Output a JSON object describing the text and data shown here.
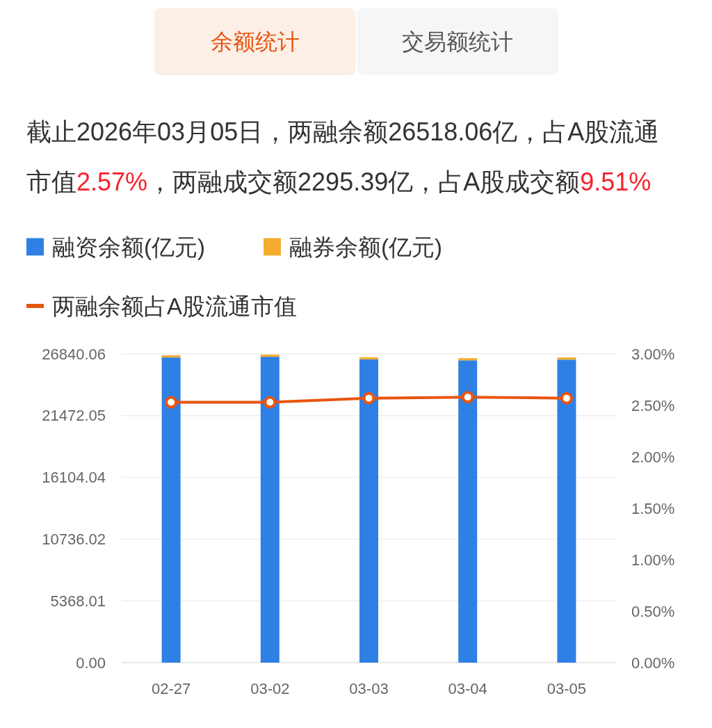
{
  "chart_data": {
    "type": "bar",
    "stacked": true,
    "annotations": [
      "余额统计",
      "交易额统计"
    ],
    "subtitle": "截止2026年03月05日，两融余额26518.06亿，占A股流通市值2.57%，两融成交额2295.39亿，占A股成交额9.51%",
    "categories": [
      "02-27",
      "03-02",
      "03-03",
      "03-04",
      "03-05"
    ],
    "series": [
      {
        "name": "融资余额(亿元)",
        "color": "#2f80e4",
        "values": [
          26530,
          26590,
          26360,
          26280,
          26340
        ]
      },
      {
        "name": "融券余额(亿元)",
        "color": "#f5ad2f",
        "values": [
          190,
          190,
          190,
          190,
          190
        ]
      },
      {
        "name": "两融余额占A股流通市值",
        "type": "line",
        "axis": "y2",
        "color": "#e8550f",
        "values": [
          2.53,
          2.53,
          2.57,
          2.58,
          2.57
        ]
      }
    ],
    "ylim": [
      0,
      26840.06
    ],
    "yticks": [
      {
        "value": 0,
        "label": "0.00"
      },
      5368.01,
      10736.02,
      16104.04,
      21472.05,
      26840.06
    ],
    "y2lim": [
      0,
      3
    ],
    "y2ticks": [
      {
        "value": 0,
        "label": "0.00%"
      },
      {
        "value": 0.5,
        "label": "0.50%"
      },
      {
        "value": 1,
        "label": "1.00%"
      },
      {
        "value": 1.5,
        "label": "1.50%"
      },
      {
        "value": 2,
        "label": "2.00%"
      },
      {
        "value": 2.5,
        "label": "2.50%"
      },
      {
        "value": 3,
        "label": "3.00%"
      }
    ],
    "grid": "y",
    "legend": "top left",
    "marker": "circle",
    "line_style": "solid"
  }
}
